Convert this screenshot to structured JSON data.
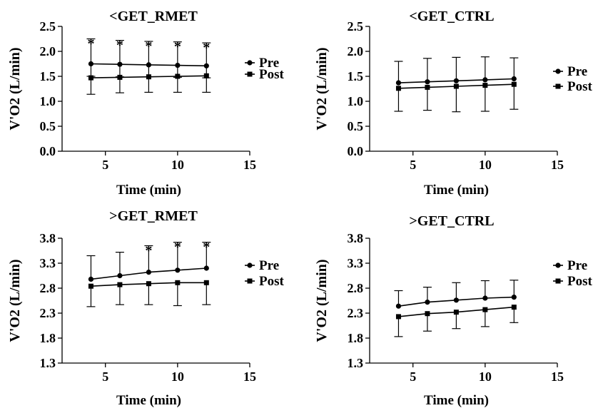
{
  "chart_data": [
    {
      "type": "line",
      "title": "<GET_RMET",
      "xlabel": "Time (min)",
      "ylabel": "V'O2 (L/min)",
      "xlim": [
        2,
        15
      ],
      "xticks": [
        5,
        10,
        15
      ],
      "ylim": [
        0.0,
        2.5
      ],
      "yticks": [
        "0.0",
        "0.5",
        "1.0",
        "1.5",
        "2.0",
        "2.5"
      ],
      "legend_position": "right",
      "x": [
        4,
        6,
        8,
        10,
        12
      ],
      "series": [
        {
          "name": "Pre",
          "marker": "circle",
          "values": [
            1.75,
            1.74,
            1.73,
            1.72,
            1.71
          ],
          "err_up": [
            0.5,
            0.48,
            0.47,
            0.47,
            0.46
          ],
          "err_down": [
            0.25,
            0.25,
            0.24,
            0.24,
            0.24
          ]
        },
        {
          "name": "Post",
          "marker": "square",
          "values": [
            1.47,
            1.48,
            1.49,
            1.5,
            1.51
          ],
          "err_up": [
            0.0,
            0.0,
            0.0,
            0.0,
            0.0
          ],
          "err_down": [
            0.33,
            0.31,
            0.31,
            0.32,
            0.33
          ]
        }
      ],
      "significance_x": [
        4,
        6,
        8,
        10,
        12
      ],
      "significance_label": "*"
    },
    {
      "type": "line",
      "title": "<GET_CTRL",
      "xlabel": "Time (min)",
      "ylabel": "V'O2 (L/min)",
      "xlim": [
        2,
        15
      ],
      "xticks": [
        5,
        10,
        15
      ],
      "ylim": [
        0.0,
        2.5
      ],
      "yticks": [
        "0.0",
        "0.5",
        "1.0",
        "1.5",
        "2.0",
        "2.5"
      ],
      "legend_position": "right",
      "x": [
        4,
        6,
        8,
        10,
        12
      ],
      "series": [
        {
          "name": "Pre",
          "marker": "circle",
          "values": [
            1.37,
            1.39,
            1.41,
            1.43,
            1.45
          ],
          "err_up": [
            0.43,
            0.47,
            0.47,
            0.46,
            0.42
          ],
          "err_down": [
            0.0,
            0.0,
            0.0,
            0.0,
            0.0
          ]
        },
        {
          "name": "Post",
          "marker": "square",
          "values": [
            1.26,
            1.28,
            1.3,
            1.32,
            1.34
          ],
          "err_up": [
            0.0,
            0.0,
            0.0,
            0.0,
            0.0
          ],
          "err_down": [
            0.46,
            0.46,
            0.51,
            0.52,
            0.5
          ]
        }
      ],
      "significance_x": [],
      "significance_label": ""
    },
    {
      "type": "line",
      "title": ">GET_RMET",
      "xlabel": "Time (min)",
      "ylabel": "V'O2 (L/min)",
      "xlim": [
        2,
        15
      ],
      "xticks": [
        5,
        10,
        15
      ],
      "ylim": [
        1.3,
        3.8
      ],
      "yticks": [
        "1.3",
        "1.8",
        "2.3",
        "2.8",
        "3.3",
        "3.8"
      ],
      "legend_position": "right",
      "x": [
        4,
        6,
        8,
        10,
        12
      ],
      "series": [
        {
          "name": "Pre",
          "marker": "circle",
          "values": [
            2.98,
            3.05,
            3.12,
            3.16,
            3.2
          ],
          "err_up": [
            0.47,
            0.47,
            0.53,
            0.56,
            0.52
          ],
          "err_down": [
            0.0,
            0.0,
            0.0,
            0.0,
            0.0
          ]
        },
        {
          "name": "Post",
          "marker": "square",
          "values": [
            2.84,
            2.87,
            2.89,
            2.91,
            2.91
          ],
          "err_up": [
            0.0,
            0.0,
            0.0,
            0.0,
            0.0
          ],
          "err_down": [
            0.41,
            0.4,
            0.42,
            0.46,
            0.44
          ]
        }
      ],
      "significance_x": [
        8,
        10,
        12
      ],
      "significance_label": "*"
    },
    {
      "type": "line",
      "title": ">GET_CTRL",
      "xlabel": "Time (min)",
      "ylabel": "V'O2 (L/min)",
      "xlim": [
        2,
        15
      ],
      "xticks": [
        5,
        10,
        15
      ],
      "ylim": [
        1.3,
        3.8
      ],
      "yticks": [
        "1.3",
        "1.8",
        "2.3",
        "2.8",
        "3.3",
        "3.8"
      ],
      "legend_position": "right",
      "x": [
        4,
        6,
        8,
        10,
        12
      ],
      "series": [
        {
          "name": "Pre",
          "marker": "circle",
          "values": [
            2.44,
            2.52,
            2.56,
            2.6,
            2.62
          ],
          "err_up": [
            0.31,
            0.3,
            0.35,
            0.35,
            0.34
          ],
          "err_down": [
            0.0,
            0.0,
            0.0,
            0.0,
            0.0
          ]
        },
        {
          "name": "Post",
          "marker": "square",
          "values": [
            2.23,
            2.29,
            2.32,
            2.37,
            2.42
          ],
          "err_up": [
            0.0,
            0.0,
            0.0,
            0.0,
            0.0
          ],
          "err_down": [
            0.4,
            0.35,
            0.33,
            0.34,
            0.31
          ]
        }
      ],
      "significance_x": [],
      "significance_label": ""
    }
  ]
}
